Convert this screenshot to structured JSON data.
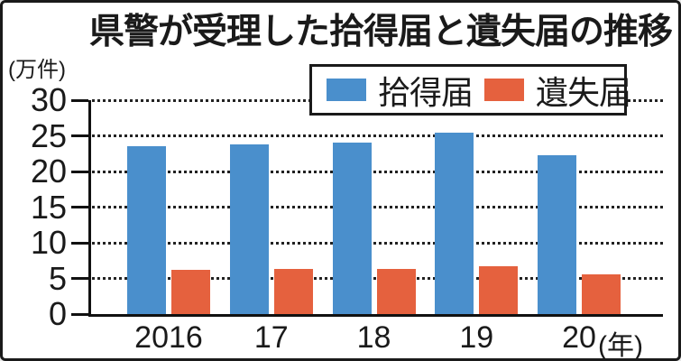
{
  "header": {
    "title": "県警が受理した拾得届と遺失届の推移",
    "unit_label": "(万件)",
    "year_suffix": "(年)"
  },
  "colors": {
    "found_blue": "#4a8fcc",
    "lost_orange": "#e5613e",
    "axis_black": "#1a1a1a"
  },
  "legend": {
    "items": [
      {
        "label": "拾得届",
        "color": "#4a8fcc"
      },
      {
        "label": "遺失届",
        "color": "#e5613e"
      }
    ]
  },
  "chart_data": {
    "type": "bar",
    "title": "県警が受理した拾得届と遺失届の推移",
    "unit": "万件",
    "categories": [
      "2016",
      "17",
      "18",
      "19",
      "20"
    ],
    "series": [
      {
        "name": "拾得届",
        "color": "#4a8fcc",
        "values": [
          23.5,
          23.8,
          24.1,
          25.4,
          22.3
        ]
      },
      {
        "name": "遺失届",
        "color": "#e5613e",
        "values": [
          6.2,
          6.3,
          6.3,
          6.7,
          5.6
        ]
      }
    ],
    "xlabel": "年",
    "ylabel": "万件",
    "ylim": [
      0,
      30
    ],
    "yticks": [
      0,
      5,
      10,
      15,
      20,
      25,
      30
    ],
    "grid": "dotted-horizontal",
    "legend_position": "top-inside"
  }
}
